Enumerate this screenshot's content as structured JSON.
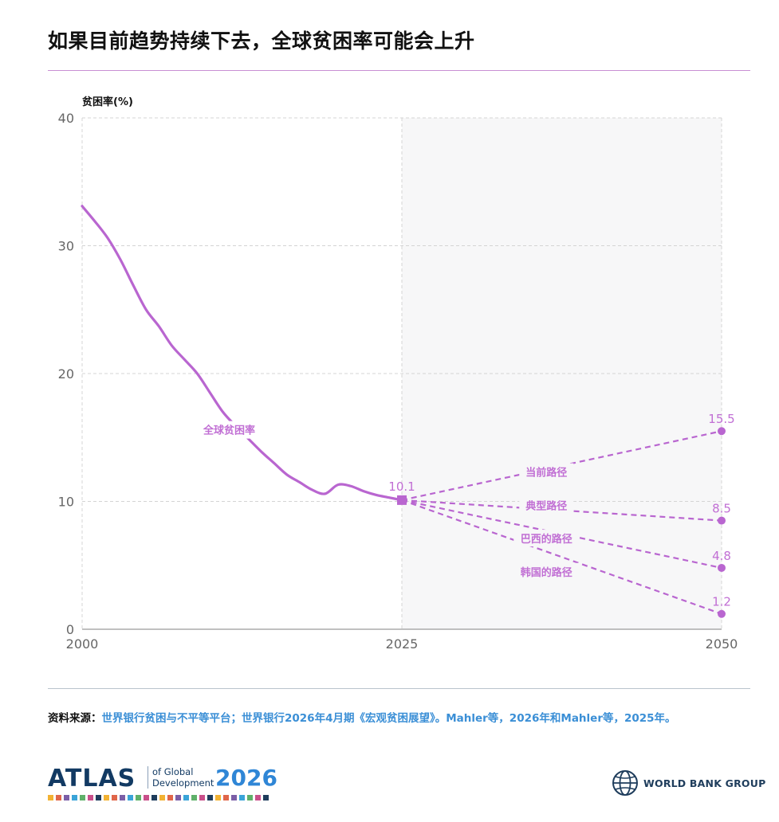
{
  "title": "如果目前趋势持续下去，全球贫困率可能会上升",
  "source_label": "资料来源：",
  "source_text": "世界银行贫困与不平等平台；世界银行2026年4月期《宏观贫困展望》。Mahler等，2026年和Mahler等，2025年。",
  "logo_atlas": {
    "word": "ATLAS",
    "sub_line1": "of Global",
    "sub_line2": "Development",
    "year": "2026"
  },
  "logo_wbg": {
    "text": "WORLD BANK GROUP"
  },
  "colors": {
    "accent": "#b966d0",
    "label": "#c16fd4",
    "shade": "#f7f7f8",
    "grid": "#d4d4d4",
    "axis_text": "#666666"
  },
  "chart_data": {
    "type": "line",
    "ylabel": "贫困率(%)",
    "xlim": [
      2000,
      2050
    ],
    "ylim": [
      0,
      40
    ],
    "x_ticks": [
      2000,
      2025,
      2050
    ],
    "y_ticks": [
      0,
      10,
      20,
      30,
      40
    ],
    "grid": true,
    "projection_shaded_from": 2025,
    "historical": {
      "name": "全球贫困率",
      "points": [
        [
          2000,
          33.1
        ],
        [
          2001,
          31.9
        ],
        [
          2002,
          30.6
        ],
        [
          2003,
          28.9
        ],
        [
          2004,
          26.9
        ],
        [
          2005,
          25.0
        ],
        [
          2006,
          23.7
        ],
        [
          2007,
          22.2
        ],
        [
          2008,
          21.1
        ],
        [
          2009,
          20.0
        ],
        [
          2010,
          18.5
        ],
        [
          2011,
          17.0
        ],
        [
          2012,
          15.9
        ],
        [
          2013,
          14.9
        ],
        [
          2014,
          13.9
        ],
        [
          2015,
          13.0
        ],
        [
          2016,
          12.1
        ],
        [
          2017,
          11.5
        ],
        [
          2018,
          10.9
        ],
        [
          2019,
          10.6
        ],
        [
          2020,
          11.3
        ],
        [
          2021,
          11.2
        ],
        [
          2022,
          10.8
        ],
        [
          2023,
          10.5
        ],
        [
          2024,
          10.3
        ],
        [
          2025,
          10.1
        ]
      ]
    },
    "point_2025": {
      "x": 2025,
      "y": 10.1,
      "label": "10.1"
    },
    "scenarios": [
      {
        "name": "当前路径",
        "end": 15.5,
        "label": "15.5"
      },
      {
        "name": "典型路径",
        "end": 8.5,
        "label": "8.5"
      },
      {
        "name": "巴西的路径",
        "end": 4.8,
        "label": "4.8"
      },
      {
        "name": "韩国的路径",
        "end": 1.2,
        "label": "1.2"
      }
    ]
  }
}
